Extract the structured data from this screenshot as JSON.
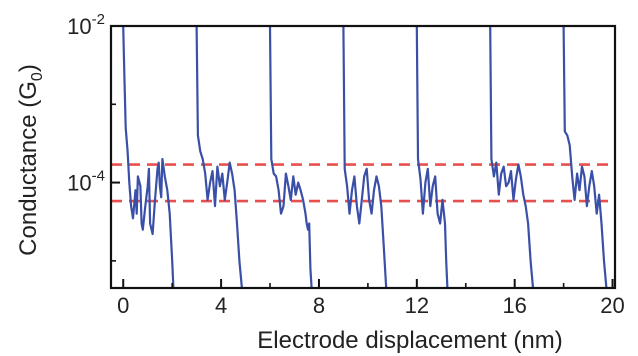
{
  "chart_data": {
    "type": "line",
    "title": "",
    "xlabel": "Electrode displacement (nm)",
    "ylabel_main": "Conductance (G",
    "ylabel_sub": "0",
    "ylabel_close": ")",
    "x_ticks": [
      "0",
      "4",
      "8",
      "12",
      "16",
      "20"
    ],
    "x_tick_values": [
      0,
      4,
      8,
      12,
      16,
      20
    ],
    "xlim": [
      -0.5,
      20.1
    ],
    "y_scale": "log",
    "ylim": [
      4.5e-06,
      0.01
    ],
    "y_ticks": [
      {
        "value": 0.01,
        "base": "10",
        "exp": "-2"
      },
      {
        "value": 0.0001,
        "base": "10",
        "exp": "-4"
      }
    ],
    "y_minor_ticks": [
      0.001,
      1e-05
    ],
    "grid": false,
    "reference_lines": [
      {
        "y": 0.00017,
        "color": "#e8504e",
        "style": "dashed"
      },
      {
        "y": 5.8e-05,
        "color": "#e8504e",
        "style": "dashed"
      }
    ],
    "series_color": "#3a50a8",
    "series": [
      {
        "x": [
          0.0,
          0.05,
          0.1,
          0.18,
          0.25,
          0.32,
          0.4,
          0.5,
          0.55,
          0.6,
          0.7,
          0.75,
          0.8,
          0.9,
          1.0,
          1.05,
          1.1,
          1.2,
          1.3,
          1.4,
          1.45,
          1.5,
          1.55,
          1.6,
          1.7,
          1.8,
          1.9,
          2.0,
          2.05
        ],
        "y": [
          0.01,
          0.002,
          0.0005,
          0.00025,
          0.0001,
          5e-05,
          3.5e-05,
          8e-05,
          4e-05,
          0.00012,
          9e-05,
          3e-05,
          2.5e-05,
          5e-05,
          9e-05,
          0.00015,
          3e-05,
          2.2e-05,
          6e-05,
          0.00015,
          0.00018,
          9e-05,
          6.5e-05,
          0.0002,
          0.00012,
          8e-05,
          4e-05,
          1e-05,
          4.5e-06
        ]
      },
      {
        "x": [
          3.0,
          3.05,
          3.15,
          3.25,
          3.35,
          3.45,
          3.55,
          3.65,
          3.75,
          3.85,
          3.95,
          4.05,
          4.15,
          4.25,
          4.35,
          4.45,
          4.55,
          4.65,
          4.75,
          4.85
        ],
        "y": [
          0.01,
          0.0004,
          0.00025,
          0.0002,
          0.00013,
          6e-05,
          0.0001,
          0.00014,
          5e-05,
          0.00016,
          9e-05,
          0.00013,
          6e-05,
          0.0001,
          0.00018,
          0.00013,
          8e-05,
          3e-05,
          1e-05,
          4.5e-06
        ]
      },
      {
        "x": [
          6.0,
          6.05,
          6.15,
          6.25,
          6.35,
          6.45,
          6.55,
          6.65,
          6.75,
          6.85,
          6.95,
          7.05,
          7.15,
          7.25,
          7.35,
          7.45,
          7.5,
          7.55,
          7.6,
          7.65,
          7.7
        ],
        "y": [
          0.01,
          0.0002,
          0.00013,
          0.00012,
          8e-05,
          4e-05,
          5e-05,
          0.00013,
          9e-05,
          6e-05,
          0.00012,
          7e-05,
          0.0001,
          8e-05,
          6e-05,
          4e-05,
          3e-05,
          2.5e-05,
          3e-05,
          8e-06,
          4.5e-06
        ]
      },
      {
        "x": [
          9.0,
          9.05,
          9.15,
          9.25,
          9.35,
          9.45,
          9.55,
          9.65,
          9.75,
          9.85,
          9.95,
          10.05,
          10.15,
          10.25,
          10.35,
          10.45,
          10.55,
          10.65,
          10.75
        ],
        "y": [
          0.01,
          0.00015,
          9e-05,
          4e-05,
          8e-05,
          0.00012,
          5e-05,
          3e-05,
          6e-05,
          0.00012,
          0.00015,
          6e-05,
          4e-05,
          8e-05,
          0.00012,
          9e-05,
          5e-05,
          1.5e-05,
          4.5e-06
        ]
      },
      {
        "x": [
          12.0,
          12.05,
          12.15,
          12.25,
          12.35,
          12.45,
          12.55,
          12.65,
          12.75,
          12.85,
          12.95,
          13.05,
          13.15,
          13.2,
          13.25
        ],
        "y": [
          0.01,
          0.0002,
          0.00011,
          4e-05,
          0.0001,
          0.00015,
          5e-05,
          9e-05,
          0.00012,
          4e-05,
          3e-05,
          6e-05,
          3e-05,
          1e-05,
          4.5e-06
        ]
      },
      {
        "x": [
          15.0,
          15.05,
          15.15,
          15.25,
          15.35,
          15.45,
          15.55,
          15.65,
          15.75,
          15.85,
          15.95,
          16.05,
          16.15,
          16.25,
          16.35,
          16.45,
          16.55,
          16.65,
          16.75
        ],
        "y": [
          0.01,
          0.0002,
          0.00012,
          0.00018,
          7e-05,
          0.00013,
          0.00016,
          9e-05,
          0.0001,
          0.00014,
          6e-05,
          0.00011,
          0.00017,
          0.00012,
          7e-05,
          5e-05,
          3e-05,
          1e-05,
          4.5e-06
        ]
      },
      {
        "x": [
          18.0,
          18.05,
          18.15,
          18.25,
          18.35,
          18.45,
          18.55,
          18.65,
          18.75,
          18.85,
          18.95,
          19.05,
          19.15,
          19.25,
          19.35,
          19.45,
          19.55,
          19.65,
          19.75
        ],
        "y": [
          0.01,
          0.00045,
          0.0004,
          0.0003,
          0.00012,
          6e-05,
          0.00013,
          8e-05,
          0.00016,
          0.00012,
          5e-05,
          9e-05,
          0.00014,
          9e-05,
          4e-05,
          7e-05,
          3e-05,
          1e-05,
          4.5e-06
        ]
      }
    ]
  }
}
